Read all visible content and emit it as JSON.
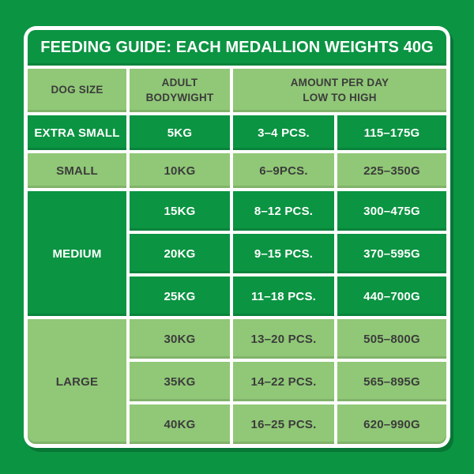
{
  "palette": {
    "background_green": "#0B9442",
    "row_dark_green": "#0B9442",
    "row_light_green": "#90C877",
    "border_white": "#FFFFFF",
    "title_text": "#FFFFFF",
    "dark_text": "#3C3C3B"
  },
  "title": "FEEDING GUIDE: EACH MEDALLION WEIGHTS 40G",
  "header": {
    "dog_size": "DOG SIZE",
    "bodyweight_line1": "ADULT",
    "bodyweight_line2": "BODYWIGHT",
    "amount_line1": "AMOUNT PER DAY",
    "amount_line2": "LOW TO HIGH"
  },
  "groups": [
    {
      "size": "EXTRA SMALL",
      "shade": "dark",
      "rows": [
        {
          "weight": "5KG",
          "pieces": "3–4 PCS.",
          "grams": "115–175G"
        }
      ]
    },
    {
      "size": "SMALL",
      "shade": "light",
      "rows": [
        {
          "weight": "10KG",
          "pieces": "6–9PCS.",
          "grams": "225–350G"
        }
      ]
    },
    {
      "size": "MEDIUM",
      "shade": "dark",
      "rows": [
        {
          "weight": "15KG",
          "pieces": "8–12 PCS.",
          "grams": "300–475G"
        },
        {
          "weight": "20KG",
          "pieces": "9–15 PCS.",
          "grams": "370–595G"
        },
        {
          "weight": "25KG",
          "pieces": "11–18 PCS.",
          "grams": "440–700G"
        }
      ]
    },
    {
      "size": "LARGE",
      "shade": "light",
      "rows": [
        {
          "weight": "30KG",
          "pieces": "13–20 PCS.",
          "grams": "505–800G"
        },
        {
          "weight": "35KG",
          "pieces": "14–22 PCS.",
          "grams": "565–895G"
        },
        {
          "weight": "40KG",
          "pieces": "16–25 PCS.",
          "grams": "620–990G"
        }
      ]
    }
  ],
  "chart_data": {
    "type": "table",
    "title": "FEEDING GUIDE: EACH MEDALLION WEIGHTS 40G",
    "columns": [
      "DOG SIZE",
      "ADULT BODYWIGHT",
      "AMOUNT PER DAY LOW TO HIGH (PCS.)",
      "AMOUNT PER DAY LOW TO HIGH (G)"
    ],
    "rows": [
      [
        "EXTRA SMALL",
        "5KG",
        "3–4 PCS.",
        "115–175G"
      ],
      [
        "SMALL",
        "10KG",
        "6–9PCS.",
        "225–350G"
      ],
      [
        "MEDIUM",
        "15KG",
        "8–12 PCS.",
        "300–475G"
      ],
      [
        "MEDIUM",
        "20KG",
        "9–15 PCS.",
        "370–595G"
      ],
      [
        "MEDIUM",
        "25KG",
        "11–18 PCS.",
        "440–700G"
      ],
      [
        "LARGE",
        "30KG",
        "13–20 PCS.",
        "505–800G"
      ],
      [
        "LARGE",
        "35KG",
        "14–22 PCS.",
        "565–895G"
      ],
      [
        "LARGE",
        "40KG",
        "16–25 PCS.",
        "620–990G"
      ]
    ]
  }
}
